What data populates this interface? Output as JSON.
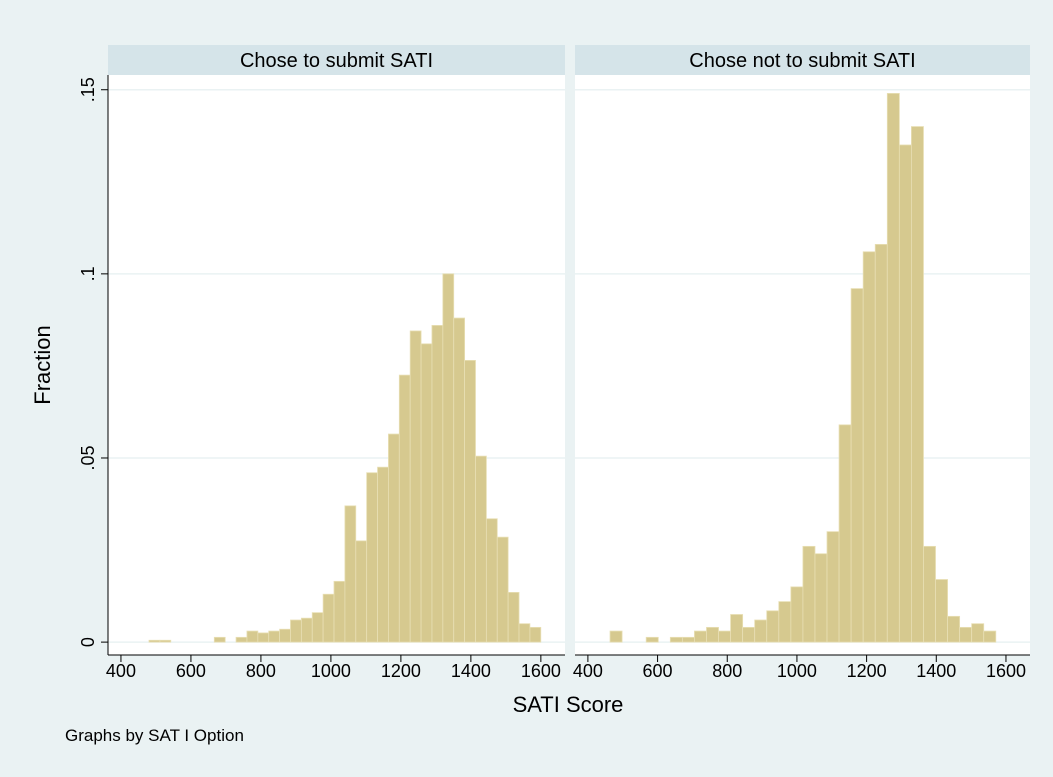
{
  "chart_data": [
    {
      "type": "histogram",
      "title": "Chose to submit SATI",
      "bins": [
        480.2,
        511.3,
        542.4,
        573.5,
        604.6,
        635.7,
        666.8,
        697.9,
        729,
        760.1,
        791.2,
        822.3,
        853.4,
        884.5,
        915.6,
        946.7,
        977.8,
        1008.9,
        1040,
        1071.1,
        1102.2,
        1133.3,
        1164.4,
        1195.5,
        1226.6,
        1257.7,
        1288.8,
        1319.9,
        1351,
        1382.1,
        1413.2,
        1444.3,
        1475.4,
        1506.5,
        1537.6,
        1568.7,
        1599.8
      ],
      "values": [
        0.0005,
        0.0005,
        0,
        0,
        0,
        0,
        0.0013,
        0,
        0.0013,
        0.003,
        0.0025,
        0.003,
        0.0035,
        0.006,
        0.0065,
        0.008,
        0.013,
        0.0165,
        0.037,
        0.0275,
        0.046,
        0.0475,
        0.0565,
        0.0725,
        0.0845,
        0.081,
        0.086,
        0.1,
        0.088,
        0.0765,
        0.0505,
        0.0335,
        0.0285,
        0.0135,
        0.005,
        0.004
      ],
      "color": "#d6c98f",
      "xlim": [
        363,
        1669
      ],
      "xticks": [
        400,
        600,
        800,
        1000,
        1200,
        1400,
        1600
      ],
      "ylim": [
        -0.0035,
        0.154
      ],
      "yticks": [
        0,
        {
          "value": 0.05,
          "label": ".05"
        },
        {
          "value": 0.1,
          "label": ".1"
        },
        {
          "value": 0.15,
          "label": ".15"
        }
      ],
      "grid": true
    },
    {
      "type": "histogram",
      "title": "Chose not to submit SATI",
      "bins": [
        429,
        463.6,
        498.2,
        532.8,
        567.4,
        602,
        636.6,
        671.2,
        705.8,
        740.4,
        775,
        809.6,
        844.2,
        878.8,
        913.4,
        948,
        982.6,
        1017.2,
        1051.8,
        1086.4,
        1121,
        1155.6,
        1190.2,
        1224.8,
        1259.4,
        1294,
        1328.6,
        1363.2,
        1397.8,
        1432.4,
        1467,
        1501.6,
        1536.2,
        1570.8
      ],
      "values": [
        0,
        0.003,
        0,
        0,
        0.0013,
        0,
        0.0013,
        0.0013,
        0.003,
        0.004,
        0.003,
        0.0075,
        0.004,
        0.006,
        0.0085,
        0.011,
        0.015,
        0.026,
        0.024,
        0.03,
        0.059,
        0.096,
        0.106,
        0.108,
        0.149,
        0.135,
        0.14,
        0.026,
        0.017,
        0.007,
        0.004,
        0.005,
        0.003
      ],
      "color": "#d6c98f",
      "xlim": [
        363,
        1669
      ],
      "xticks": [
        400,
        600,
        800,
        1000,
        1200,
        1400,
        1600
      ],
      "ylim": [
        -0.0035,
        0.154
      ],
      "grid": true
    }
  ],
  "y_label": "Fraction",
  "x_label": "SATI Score",
  "note": "Graphs by SAT I Option"
}
